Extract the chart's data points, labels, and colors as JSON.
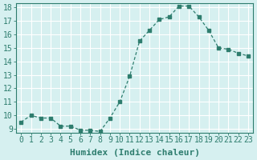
{
  "x": [
    0,
    1,
    2,
    3,
    4,
    5,
    6,
    7,
    8,
    9,
    10,
    11,
    12,
    13,
    14,
    15,
    16,
    17,
    18,
    19,
    20,
    21,
    22,
    23
  ],
  "y": [
    9.5,
    10.0,
    9.8,
    9.8,
    9.2,
    9.2,
    8.9,
    8.9,
    8.8,
    9.8,
    11.0,
    12.9,
    15.5,
    16.3,
    17.1,
    17.3,
    18.1,
    18.1,
    17.3,
    16.3,
    15.0,
    14.9,
    14.6,
    14.4
  ],
  "xlabel": "Humidex (Indice chaleur)",
  "ylim": [
    9,
    18
  ],
  "xlim": [
    0,
    23
  ],
  "yticks": [
    9,
    10,
    11,
    12,
    13,
    14,
    15,
    16,
    17,
    18
  ],
  "xticks": [
    0,
    1,
    2,
    3,
    4,
    5,
    6,
    7,
    8,
    9,
    10,
    11,
    12,
    13,
    14,
    15,
    16,
    17,
    18,
    19,
    20,
    21,
    22,
    23
  ],
  "line_color": "#2e7d6e",
  "marker_color": "#2e7d6e",
  "bg_color": "#d6f0f0",
  "grid_color": "#ffffff",
  "tick_label_color": "#2e7d6e",
  "xlabel_color": "#2e7d6e",
  "xlabel_fontsize": 8,
  "tick_fontsize": 7
}
